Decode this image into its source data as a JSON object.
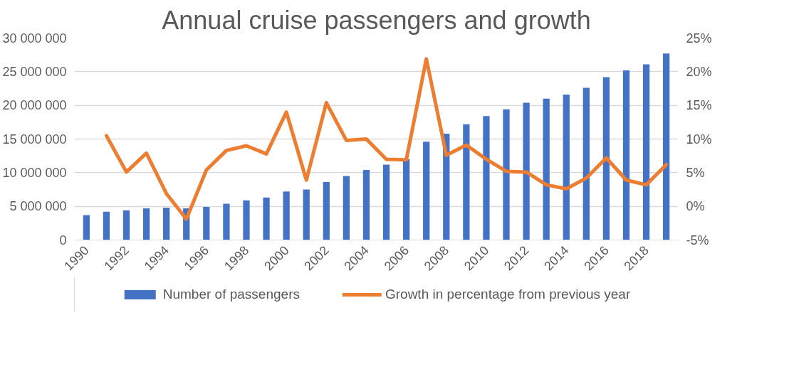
{
  "chart_data": {
    "type": "bar",
    "title": "Annual cruise passengers and growth",
    "categories": [
      "1990",
      null,
      "1992",
      null,
      "1994",
      null,
      "1996",
      null,
      "1998",
      null,
      "2000",
      null,
      "2002",
      null,
      "2004",
      null,
      "2006",
      null,
      "2008",
      null,
      "2010",
      null,
      "2012",
      null,
      "2014",
      null,
      "2016",
      null,
      "2018",
      null
    ],
    "series": [
      {
        "name": "Number of passengers",
        "color": "#4472c4",
        "values": [
          3700000,
          4200000,
          4400000,
          4700000,
          4800000,
          4700000,
          4900000,
          5400000,
          5900000,
          6300000,
          7200000,
          7500000,
          8600000,
          9500000,
          10400000,
          11200000,
          12000000,
          14600000,
          15800000,
          17200000,
          18400000,
          19400000,
          20400000,
          21000000,
          21600000,
          22600000,
          24200000,
          25200000,
          26100000,
          27700000
        ]
      },
      {
        "name": "Growth in percentage from previous year",
        "color": "#ed7d31",
        "type": "line",
        "axis": "y2",
        "values": [
          null,
          10.5,
          5.1,
          7.9,
          1.9,
          -1.9,
          5.4,
          8.3,
          9.0,
          7.8,
          14.0,
          3.9,
          15.4,
          9.8,
          10.0,
          7.0,
          6.9,
          21.9,
          7.6,
          9.1,
          7.0,
          5.2,
          5.1,
          3.2,
          2.6,
          4.2,
          7.2,
          3.9,
          3.2,
          6.2
        ]
      }
    ],
    "ylim": [
      0,
      30000000
    ],
    "yticks": [
      {
        "value": 0,
        "label": "0"
      },
      {
        "value": 5000000,
        "label": "5 000 000"
      },
      {
        "value": 10000000,
        "label": "10 000 000"
      },
      {
        "value": 15000000,
        "label": "15 000 000"
      },
      {
        "value": 20000000,
        "label": "20 000 000"
      },
      {
        "value": 25000000,
        "label": "25 000 000"
      },
      {
        "value": 30000000,
        "label": "30 000 000"
      }
    ],
    "y2lim": [
      -5,
      25
    ],
    "y2ticks": [
      {
        "value": -5,
        "label": "-5%"
      },
      {
        "value": 0,
        "label": "0%"
      },
      {
        "value": 5,
        "label": "5%"
      },
      {
        "value": 10,
        "label": "10%"
      },
      {
        "value": 15,
        "label": "15%"
      },
      {
        "value": 20,
        "label": "20%"
      },
      {
        "value": 25,
        "label": "25%"
      }
    ],
    "grid": "y",
    "legend": "bottom"
  }
}
